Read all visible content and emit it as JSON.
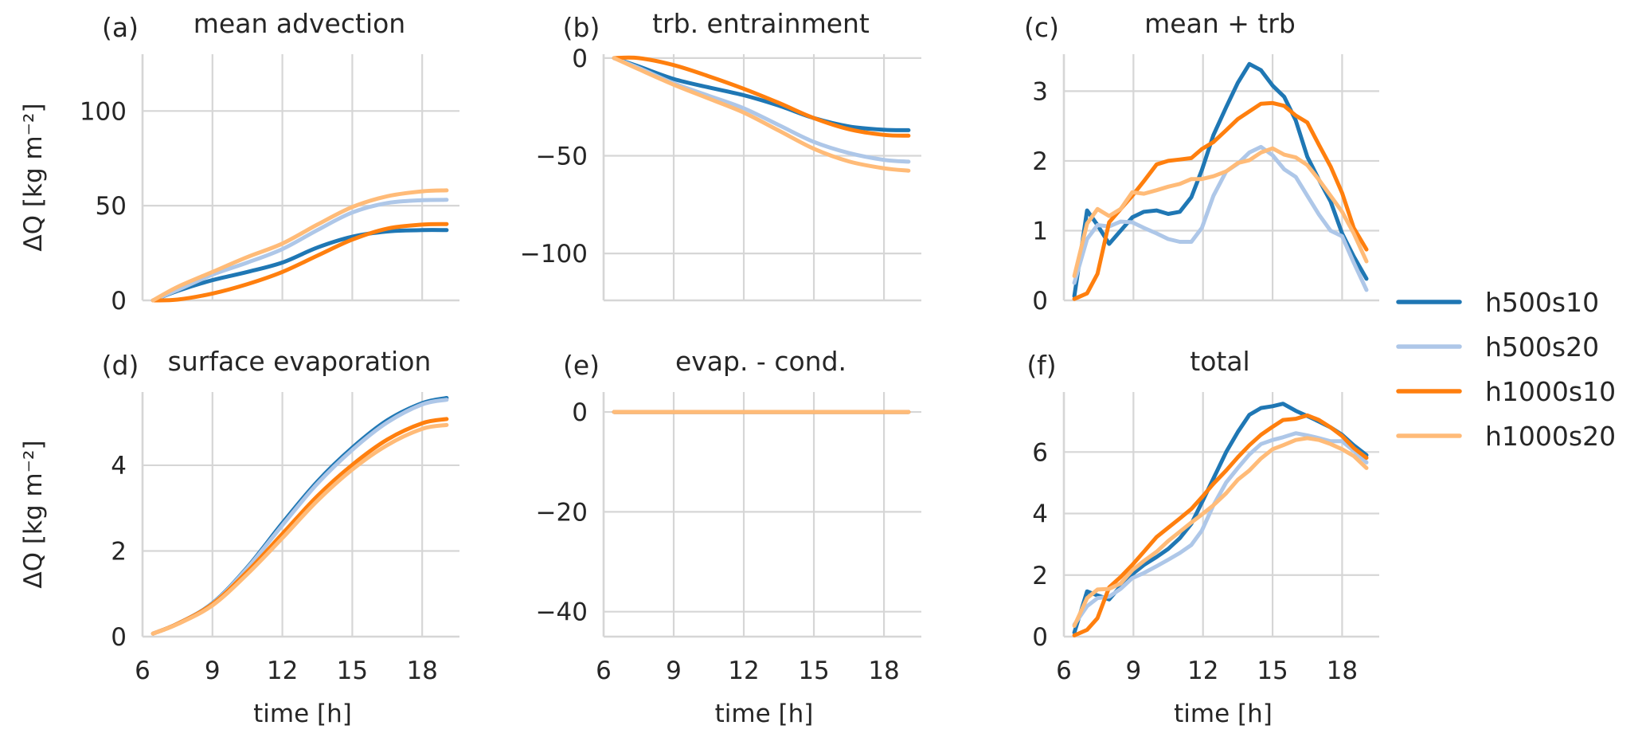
{
  "figure": {
    "legend": {
      "placement": "right-center",
      "entries": [
        {
          "name": "h500s10",
          "color": "#1f77b4"
        },
        {
          "name": "h500s20",
          "color": "#aec7e8"
        },
        {
          "name": "h1000s10",
          "color": "#ff7f0e"
        },
        {
          "name": "h1000s20",
          "color": "#ffbb78"
        }
      ]
    }
  },
  "chart_data": [
    {
      "type": "line",
      "panel": "(a)",
      "title": "mean advection",
      "xlabel": "",
      "ylabel": "ΔQ [kg m⁻²]",
      "xlim": [
        6,
        19.6
      ],
      "ylim": [
        0,
        130
      ],
      "xticks": [
        6,
        9,
        12,
        15,
        18
      ],
      "xtick_labels_shown": false,
      "yticks": [
        0,
        50,
        100
      ],
      "ytick_labels": [
        "0",
        "50",
        "100"
      ],
      "grid": true,
      "smooth": true,
      "x": [
        6.45,
        7.5,
        9,
        10.5,
        12,
        13.5,
        15,
        16.5,
        18,
        19.05
      ],
      "series": [
        {
          "name": "h500s10",
          "values": [
            0,
            5,
            10.7,
            15,
            20,
            27.9,
            33.6,
            36.4,
            37.1,
            37.1
          ]
        },
        {
          "name": "h500s20",
          "values": [
            0,
            5.5,
            13.6,
            20,
            27.1,
            37.1,
            46.4,
            51.4,
            52.9,
            53.1
          ]
        },
        {
          "name": "h1000s10",
          "values": [
            0,
            0.4,
            3.6,
            8.6,
            15,
            23.6,
            32.1,
            37.9,
            40,
            40.3
          ]
        },
        {
          "name": "h1000s20",
          "values": [
            0,
            7.1,
            15,
            22.9,
            30,
            40,
            49.3,
            55,
            57.6,
            58.1
          ]
        }
      ]
    },
    {
      "type": "line",
      "panel": "(b)",
      "title": "trb. entrainment",
      "xlabel": "",
      "ylabel": "",
      "xlim": [
        6,
        19.6
      ],
      "ylim": [
        -124,
        2
      ],
      "xticks": [
        6,
        9,
        12,
        15,
        18
      ],
      "xtick_labels_shown": false,
      "yticks": [
        0,
        -50,
        -100
      ],
      "ytick_labels": [
        "0",
        "−50",
        "−100"
      ],
      "grid": true,
      "smooth": true,
      "x": [
        6.45,
        7.5,
        9,
        10.5,
        12,
        13.5,
        15,
        16.5,
        18,
        19.05
      ],
      "series": [
        {
          "name": "h500s10",
          "values": [
            0,
            -4.3,
            -10.7,
            -15,
            -19,
            -24.3,
            -30.7,
            -35,
            -36.7,
            -36.9
          ]
        },
        {
          "name": "h500s20",
          "values": [
            0,
            -5,
            -12.9,
            -19.3,
            -25.7,
            -34.3,
            -42.9,
            -48.6,
            -52.1,
            -53
          ]
        },
        {
          "name": "h1000s10",
          "values": [
            0,
            0,
            -3.6,
            -9.3,
            -15.7,
            -22.9,
            -30.7,
            -36.4,
            -39.3,
            -39.7
          ]
        },
        {
          "name": "h1000s20",
          "values": [
            0,
            -5.7,
            -13.6,
            -20.7,
            -27.9,
            -37.1,
            -46.4,
            -52.9,
            -56.4,
            -57.6
          ]
        }
      ]
    },
    {
      "type": "line",
      "panel": "(c)",
      "title": "mean + trb",
      "xlabel": "",
      "ylabel": "",
      "xlim": [
        6,
        19.6
      ],
      "ylim": [
        0,
        3.53
      ],
      "xticks": [
        6,
        9,
        12,
        15,
        18
      ],
      "xtick_labels_shown": false,
      "yticks": [
        0,
        1,
        2,
        3
      ],
      "ytick_labels": [
        "0",
        "1",
        "2",
        "3"
      ],
      "grid": true,
      "smooth": false,
      "x": [
        6.45,
        7.0,
        7.45,
        7.95,
        8.45,
        8.95,
        9.45,
        10.0,
        10.5,
        11.0,
        11.5,
        11.95,
        12.45,
        13.0,
        13.5,
        14.0,
        14.5,
        15.0,
        15.5,
        16.0,
        16.5,
        17.0,
        17.5,
        18.0,
        18.5,
        19.05
      ],
      "series": [
        {
          "name": "h500s10",
          "values": [
            0.06,
            1.29,
            1.08,
            0.81,
            1.0,
            1.19,
            1.27,
            1.29,
            1.24,
            1.27,
            1.48,
            1.87,
            2.37,
            2.77,
            3.12,
            3.39,
            3.3,
            3.08,
            2.92,
            2.58,
            2.06,
            1.73,
            1.42,
            0.96,
            0.63,
            0.31
          ]
        },
        {
          "name": "h500s20",
          "values": [
            0.25,
            0.88,
            1.08,
            1.06,
            1.13,
            1.12,
            1.04,
            0.96,
            0.88,
            0.84,
            0.84,
            1.04,
            1.5,
            1.85,
            1.96,
            2.12,
            2.2,
            2.08,
            1.88,
            1.77,
            1.5,
            1.23,
            1.0,
            0.92,
            0.54,
            0.15
          ]
        },
        {
          "name": "h1000s10",
          "values": [
            0.02,
            0.1,
            0.38,
            1.12,
            1.31,
            1.5,
            1.71,
            1.95,
            2.0,
            2.02,
            2.04,
            2.17,
            2.27,
            2.44,
            2.6,
            2.71,
            2.82,
            2.83,
            2.79,
            2.65,
            2.55,
            2.23,
            1.92,
            1.54,
            1.04,
            0.73
          ]
        },
        {
          "name": "h1000s20",
          "values": [
            0.35,
            1.1,
            1.31,
            1.21,
            1.31,
            1.55,
            1.53,
            1.58,
            1.63,
            1.67,
            1.74,
            1.74,
            1.78,
            1.85,
            1.97,
            2.01,
            2.12,
            2.18,
            2.09,
            2.05,
            1.94,
            1.73,
            1.5,
            1.27,
            0.96,
            0.56
          ]
        }
      ]
    },
    {
      "type": "line",
      "panel": "(d)",
      "title": "surface evaporation",
      "xlabel": "time [h]",
      "ylabel": "ΔQ [kg m⁻²]",
      "xlim": [
        6,
        19.6
      ],
      "ylim": [
        0,
        5.71
      ],
      "xticks": [
        6,
        9,
        12,
        15,
        18
      ],
      "xtick_labels_shown": true,
      "xtick_labels": [
        "6",
        "9",
        "12",
        "15",
        "18"
      ],
      "yticks": [
        0,
        2,
        4
      ],
      "ytick_labels": [
        "0",
        "2",
        "4"
      ],
      "grid": true,
      "smooth": true,
      "x": [
        6.45,
        7.5,
        9,
        10.5,
        12,
        13.5,
        15,
        16.5,
        18,
        19.05
      ],
      "series": [
        {
          "name": "h500s10",
          "values": [
            0.07,
            0.3,
            0.78,
            1.62,
            2.65,
            3.62,
            4.41,
            5.05,
            5.45,
            5.57
          ]
        },
        {
          "name": "h500s20",
          "values": [
            0.07,
            0.3,
            0.77,
            1.6,
            2.6,
            3.57,
            4.36,
            5.0,
            5.42,
            5.53
          ]
        },
        {
          "name": "h1000s10",
          "values": [
            0.07,
            0.3,
            0.76,
            1.52,
            2.4,
            3.28,
            4.01,
            4.6,
            4.98,
            5.08
          ]
        },
        {
          "name": "h1000s20",
          "values": [
            0.07,
            0.29,
            0.73,
            1.46,
            2.3,
            3.17,
            3.9,
            4.47,
            4.85,
            4.94
          ]
        }
      ]
    },
    {
      "type": "line",
      "panel": "(e)",
      "title": "evap. - cond.",
      "xlabel": "time [h]",
      "ylabel": "",
      "xlim": [
        6,
        19.6
      ],
      "ylim": [
        -45,
        4
      ],
      "xticks": [
        6,
        9,
        12,
        15,
        18
      ],
      "xtick_labels_shown": true,
      "xtick_labels": [
        "6",
        "9",
        "12",
        "15",
        "18"
      ],
      "yticks": [
        0,
        -20,
        -40
      ],
      "ytick_labels": [
        "0",
        "−20",
        "−40"
      ],
      "grid": true,
      "smooth": false,
      "x": [
        6.45,
        19.05
      ],
      "series": [
        {
          "name": "h500s10",
          "values": [
            0,
            0
          ]
        },
        {
          "name": "h500s20",
          "values": [
            0,
            0
          ]
        },
        {
          "name": "h1000s10",
          "values": [
            0,
            0
          ]
        },
        {
          "name": "h1000s20",
          "values": [
            0,
            0
          ]
        }
      ]
    },
    {
      "type": "line",
      "panel": "(f)",
      "title": "total",
      "xlabel": "time [h]",
      "ylabel": "",
      "xlim": [
        6,
        19.6
      ],
      "ylim": [
        0,
        7.95
      ],
      "xticks": [
        6,
        9,
        12,
        15,
        18
      ],
      "xtick_labels_shown": true,
      "xtick_labels": [
        "6",
        "9",
        "12",
        "15",
        "18"
      ],
      "yticks": [
        0,
        2,
        4,
        6
      ],
      "ytick_labels": [
        "0",
        "2",
        "4",
        "6"
      ],
      "grid": true,
      "smooth": false,
      "x": [
        6.45,
        7.0,
        7.45,
        7.95,
        8.45,
        8.95,
        9.45,
        10.0,
        10.5,
        11.0,
        11.5,
        11.95,
        12.45,
        13.0,
        13.5,
        14.0,
        14.5,
        15.0,
        15.45,
        16.0,
        16.5,
        17.0,
        17.5,
        18.0,
        18.5,
        19.05
      ],
      "series": [
        {
          "name": "h500s10",
          "values": [
            0.13,
            1.47,
            1.34,
            1.21,
            1.64,
            2.03,
            2.33,
            2.59,
            2.85,
            3.2,
            3.67,
            4.36,
            5.14,
            6.0,
            6.65,
            7.21,
            7.43,
            7.49,
            7.57,
            7.34,
            7.17,
            6.99,
            6.8,
            6.56,
            6.22,
            5.9
          ]
        },
        {
          "name": "h500s20",
          "values": [
            0.39,
            0.99,
            1.25,
            1.3,
            1.55,
            1.9,
            2.07,
            2.29,
            2.5,
            2.72,
            2.98,
            3.45,
            4.27,
            5.01,
            5.48,
            5.92,
            6.26,
            6.39,
            6.48,
            6.61,
            6.54,
            6.45,
            6.35,
            6.35,
            6.04,
            5.66
          ]
        },
        {
          "name": "h1000s10",
          "values": [
            0.04,
            0.22,
            0.6,
            1.6,
            1.94,
            2.33,
            2.76,
            3.24,
            3.54,
            3.84,
            4.15,
            4.53,
            4.97,
            5.4,
            5.83,
            6.22,
            6.56,
            6.82,
            7.04,
            7.08,
            7.19,
            7.04,
            6.8,
            6.52,
            6.13,
            5.81
          ]
        },
        {
          "name": "h1000s20",
          "values": [
            0.35,
            1.25,
            1.53,
            1.55,
            1.73,
            2.16,
            2.46,
            2.76,
            3.11,
            3.41,
            3.71,
            3.97,
            4.27,
            4.66,
            5.1,
            5.4,
            5.79,
            6.09,
            6.22,
            6.39,
            6.45,
            6.39,
            6.26,
            6.09,
            5.87,
            5.48
          ]
        }
      ]
    }
  ]
}
